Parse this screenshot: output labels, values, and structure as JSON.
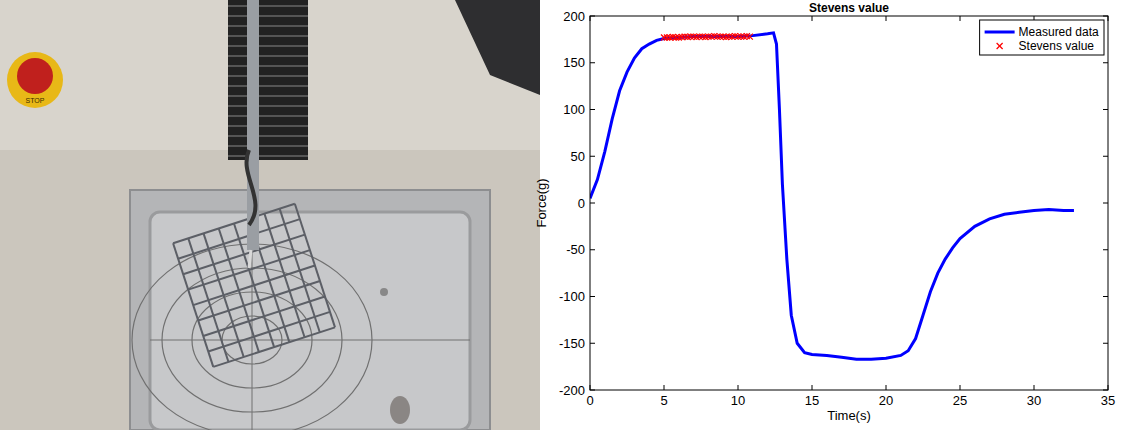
{
  "photo": {
    "button_label": "STOP"
  },
  "chart_data": {
    "type": "line",
    "title": "Stevens value",
    "x_label": "Time(s)",
    "y_label": "Force(g)",
    "xlim": [
      0,
      35
    ],
    "ylim": [
      -200,
      200
    ],
    "xticks": [
      0,
      5,
      10,
      15,
      20,
      25,
      30,
      35
    ],
    "yticks": [
      -200,
      -150,
      -100,
      -50,
      0,
      50,
      100,
      150,
      200
    ],
    "grid": false,
    "legend": "northeast",
    "series": [
      {
        "name": "Measured data",
        "color": "#0000ff",
        "type": "line",
        "line_style": "solid",
        "x": [
          0,
          0.5,
          1,
          1.5,
          2,
          2.5,
          3,
          3.5,
          4,
          4.5,
          5,
          6,
          7,
          8,
          9,
          10,
          11,
          12,
          12.4,
          12.6,
          12.8,
          13,
          13.3,
          13.6,
          14,
          14.5,
          15,
          16,
          17,
          18,
          19,
          20,
          21,
          21.5,
          22,
          22.5,
          23,
          23.5,
          24,
          24.5,
          25,
          26,
          27,
          28,
          29,
          30,
          31,
          32,
          32.7
        ],
        "values": [
          5,
          25,
          55,
          90,
          120,
          140,
          155,
          165,
          170,
          174,
          176,
          177,
          178,
          178,
          178,
          178,
          179,
          181,
          182,
          170,
          100,
          20,
          -60,
          -120,
          -150,
          -160,
          -162,
          -163,
          -165,
          -167,
          -167,
          -166,
          -163,
          -158,
          -145,
          -120,
          -95,
          -75,
          -60,
          -48,
          -38,
          -25,
          -17,
          -12,
          -10,
          -8,
          -7,
          -8,
          -8
        ]
      },
      {
        "name": "Stevens value",
        "color": "#ff0000",
        "type": "scatter",
        "marker": "x",
        "x": [
          5,
          5.2,
          5.4,
          5.6,
          5.8,
          6,
          6.2,
          6.4,
          6.6,
          6.8,
          7,
          7.2,
          7.4,
          7.6,
          7.8,
          8,
          8.2,
          8.4,
          8.6,
          8.8,
          9,
          9.2,
          9.4,
          9.6,
          9.8,
          10,
          10.2,
          10.4,
          10.6,
          10.8
        ],
        "values": [
          177,
          177,
          177,
          177.5,
          177,
          177,
          177.5,
          178,
          177.5,
          178,
          178,
          177.5,
          178,
          178,
          177.5,
          178,
          178,
          178.5,
          178,
          178,
          178,
          177.5,
          178,
          178,
          178.5,
          178,
          178,
          178,
          178.5,
          178
        ]
      }
    ]
  }
}
